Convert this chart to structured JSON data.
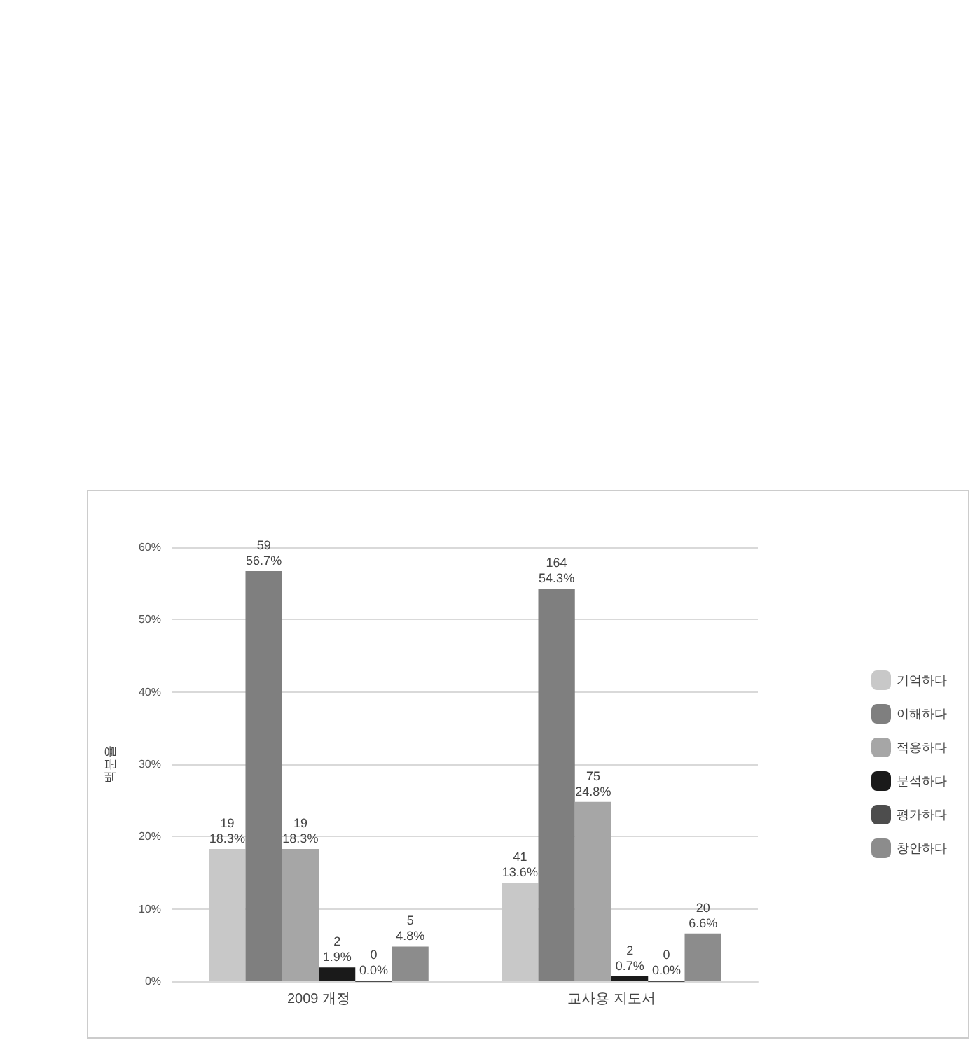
{
  "chart_data": {
    "type": "bar",
    "ylabel": "백분율",
    "categories": [
      "2009 개정",
      "교사용 지도서"
    ],
    "series": [
      {
        "name": "기억하다",
        "color": "#c8c8c8",
        "values": [
          18.3,
          13.6
        ],
        "value_labels": [
          "19\n18.3%",
          "41\n13.6%"
        ]
      },
      {
        "name": "이해하다",
        "color": "#7f7f7f",
        "values": [
          56.7,
          54.3
        ],
        "value_labels": [
          "59\n56.7%",
          "164\n54.3%"
        ]
      },
      {
        "name": "적용하다",
        "color": "#a6a6a6",
        "values": [
          18.3,
          24.8
        ],
        "value_labels": [
          "19\n18.3%",
          "75\n24.8%"
        ]
      },
      {
        "name": "분석하다",
        "color": "#1a1a1a",
        "values": [
          1.9,
          0.7
        ],
        "value_labels": [
          "2\n1.9%",
          "2\n0.7%"
        ]
      },
      {
        "name": "평가하다",
        "color": "#4d4d4d",
        "values": [
          0,
          0
        ],
        "value_labels": [
          "0\n0.0%",
          "0\n0.0%"
        ]
      },
      {
        "name": "창안하다",
        "color": "#8c8c8c",
        "values": [
          4.8,
          6.6
        ],
        "value_labels": [
          "5\n4.8%",
          "20\n6.6%"
        ]
      }
    ],
    "ylim": [
      0,
      60
    ],
    "yticks": [
      {
        "value": 0,
        "label": "0%"
      },
      {
        "value": 10,
        "label": "10%"
      },
      {
        "value": 20,
        "label": "20%"
      },
      {
        "value": 30,
        "label": "30%"
      },
      {
        "value": 40,
        "label": "40%"
      },
      {
        "value": 50,
        "label": "50%"
      },
      {
        "value": 60,
        "label": "60%"
      }
    ],
    "grid": "y",
    "legend": "right"
  }
}
